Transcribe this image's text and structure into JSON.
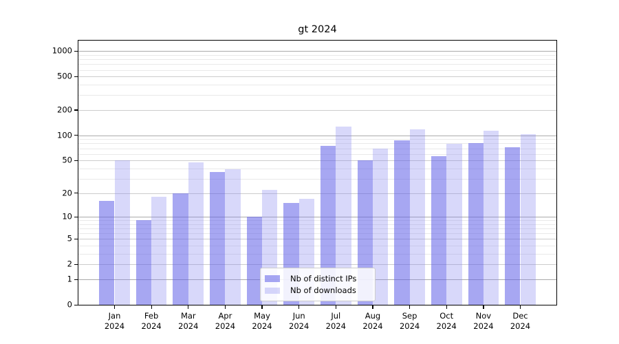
{
  "title": "gt 2024",
  "legend": {
    "items": [
      {
        "label": "Nb of distinct IPs"
      },
      {
        "label": "Nb of downloads"
      }
    ]
  },
  "chart_data": {
    "type": "bar",
    "title": "gt 2024",
    "categories": [
      "Jan 2024",
      "Feb 2024",
      "Mar 2024",
      "Apr 2024",
      "May 2024",
      "Jun 2024",
      "Jul 2024",
      "Aug 2024",
      "Sep 2024",
      "Oct 2024",
      "Nov 2024",
      "Dec 2024"
    ],
    "series": [
      {
        "name": "Nb of distinct IPs",
        "color": "rgba(95,95,232,0.55)",
        "values": [
          16,
          9,
          20,
          36,
          10,
          15,
          75,
          50,
          87,
          56,
          80,
          72
        ]
      },
      {
        "name": "Nb of downloads",
        "color": "rgba(134,134,240,0.32)",
        "values": [
          50,
          18,
          47,
          39,
          22,
          17,
          126,
          70,
          117,
          79,
          114,
          104
        ]
      }
    ],
    "yscale": "log10(1+x)",
    "ylim": [
      0,
      1331
    ],
    "yticks": [
      0,
      1,
      2,
      5,
      10,
      20,
      50,
      100,
      200,
      500,
      1000
    ],
    "minor_yticks": [
      3,
      4,
      6,
      7,
      8,
      9,
      30,
      40,
      60,
      70,
      80,
      90,
      300,
      400,
      600,
      700,
      800,
      900
    ],
    "decade_yticks": [
      1,
      10,
      100,
      1000
    ],
    "grid": "horizontal, major and minor",
    "legend_position": "lower center",
    "xlabel": "",
    "ylabel": ""
  }
}
